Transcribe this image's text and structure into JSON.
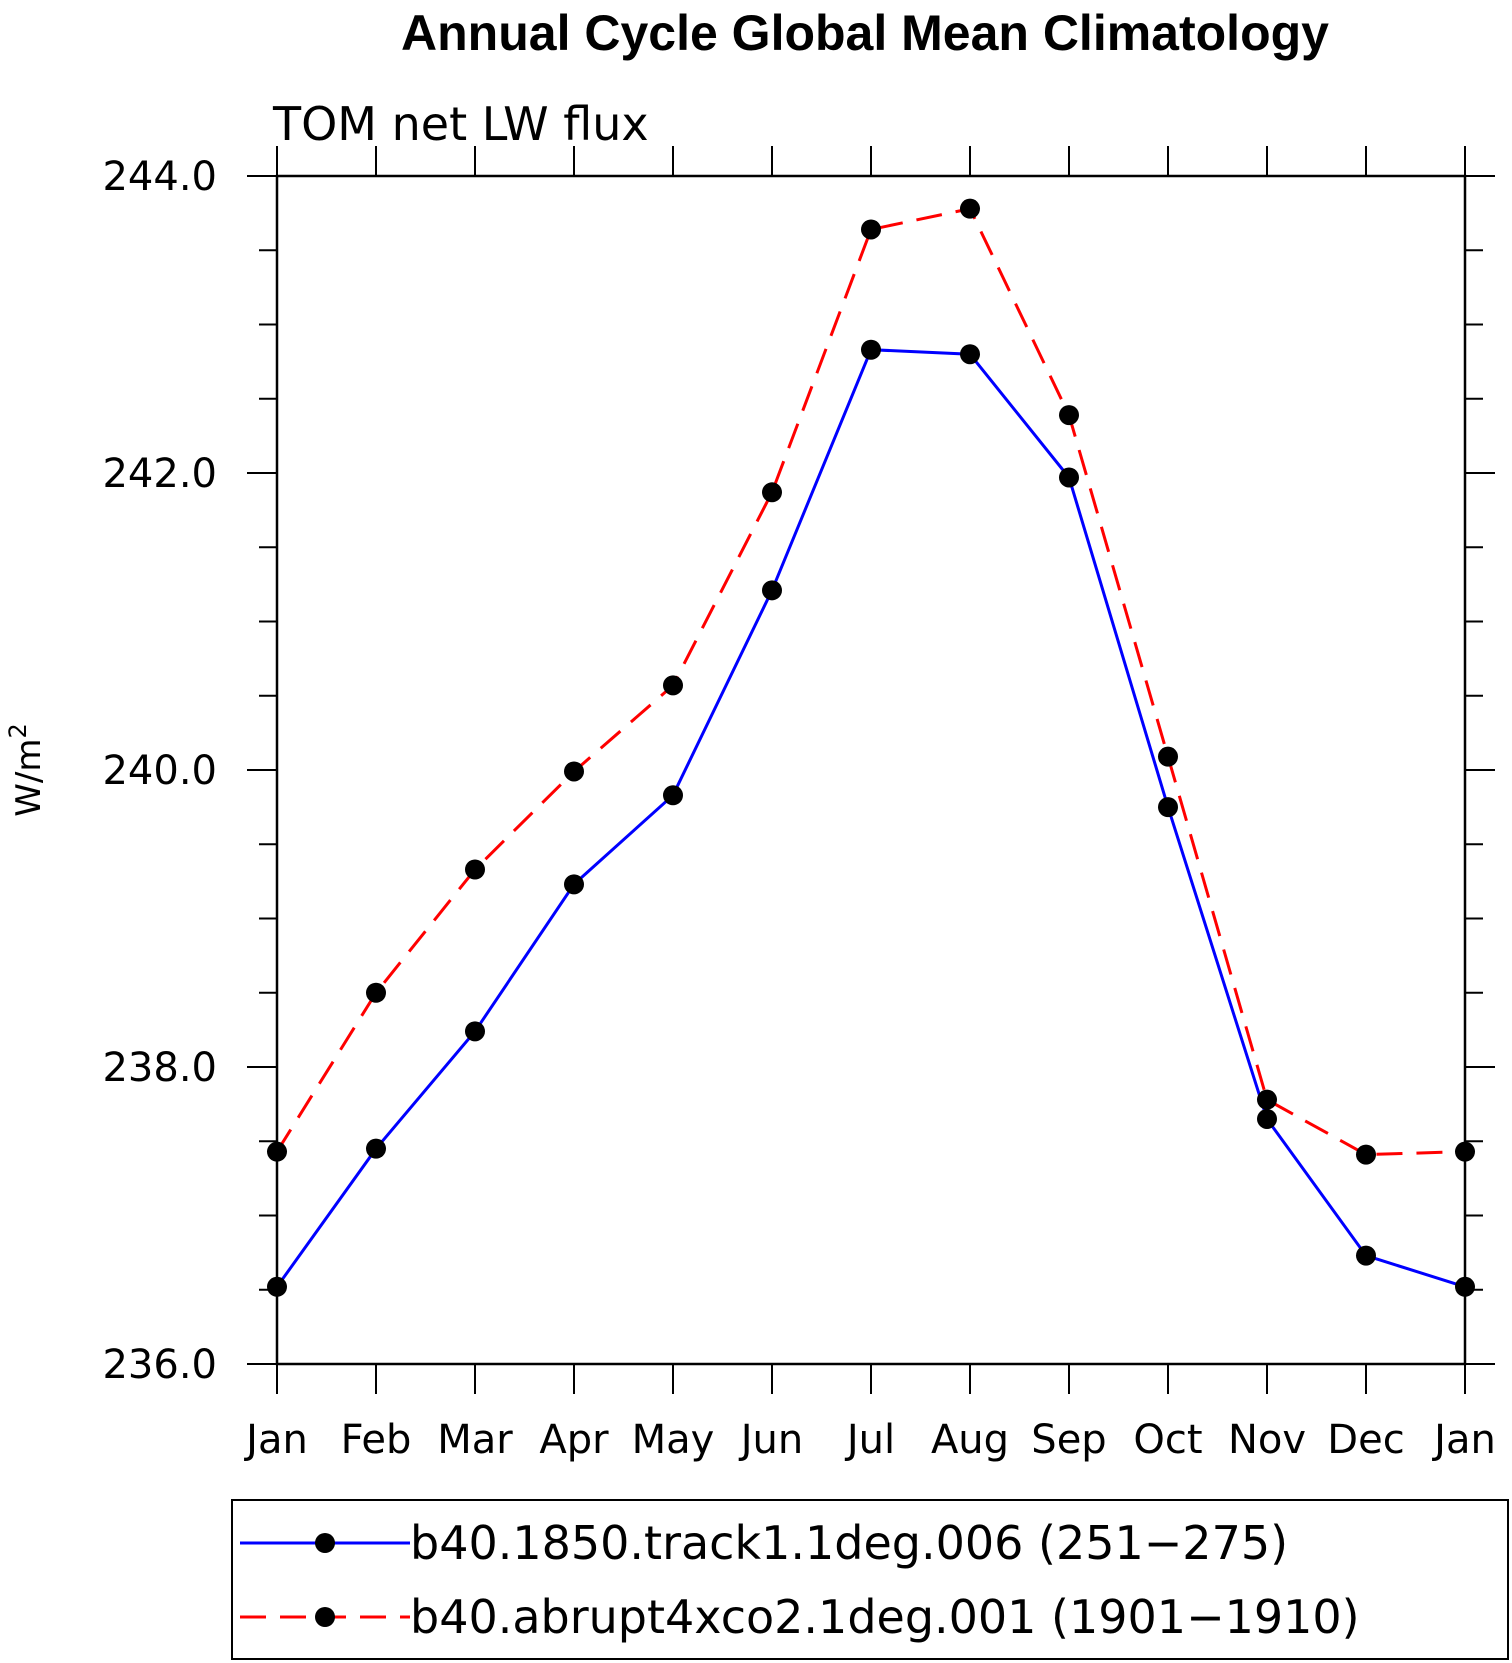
{
  "chart_data": {
    "type": "line",
    "title": "Annual Cycle Global Mean Climatology",
    "subtitle": "TOM net LW flux",
    "ylabel_base": "W/m",
    "ylabel_sup": "2",
    "categories": [
      "Jan",
      "Feb",
      "Mar",
      "Apr",
      "May",
      "Jun",
      "Jul",
      "Aug",
      "Sep",
      "Oct",
      "Nov",
      "Dec",
      "Jan"
    ],
    "ylim": [
      236.0,
      244.0
    ],
    "yticks": [
      "236.0",
      "238.0",
      "240.0",
      "242.0",
      "244.0"
    ],
    "ytick_values": [
      236.0,
      238.0,
      240.0,
      242.0,
      244.0
    ],
    "grid": false,
    "legend_position": "bottom",
    "series": [
      {
        "name": "b40.1850.track1.1deg.006 (251−275)",
        "color": "#0000ff",
        "dash": "solid",
        "values": [
          236.52,
          237.45,
          238.24,
          239.23,
          239.83,
          241.21,
          242.83,
          242.8,
          241.97,
          239.75,
          237.65,
          236.73,
          236.52
        ]
      },
      {
        "name": "b40.abrupt4xco2.1deg.001 (1901−1910)",
        "color": "#ff0000",
        "dash": "dashed",
        "values": [
          237.43,
          238.5,
          239.33,
          239.99,
          240.57,
          241.87,
          243.64,
          243.78,
          242.39,
          240.09,
          237.78,
          237.41,
          237.43
        ]
      }
    ]
  }
}
